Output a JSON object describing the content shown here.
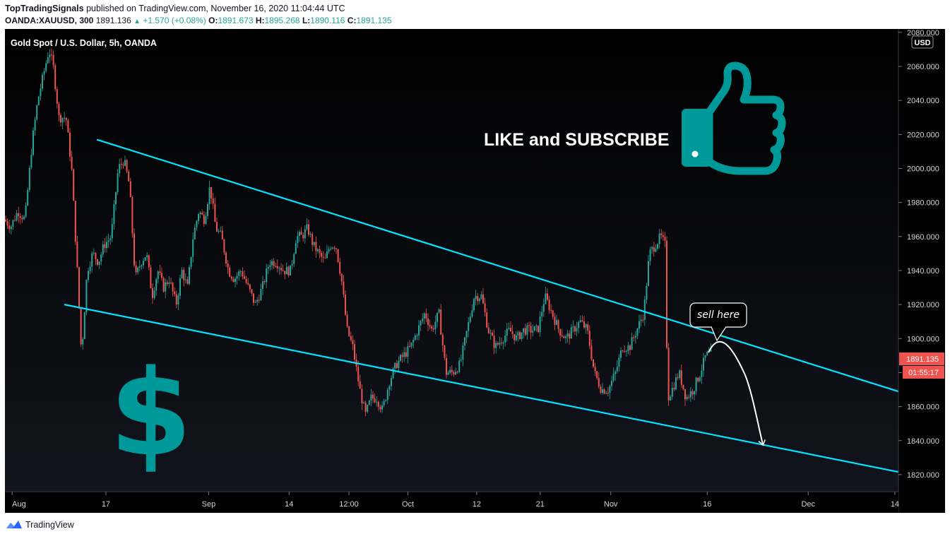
{
  "header": {
    "author": "TopTradingSignals",
    "published": "published on TradingView.com, November 16, 2020 11:04:44 UTC",
    "symbol": "OANDA:XAUUSD, 300",
    "last": "1891.136",
    "change": "+1.570 (+0.08%)",
    "o_label": "O:",
    "o_val": "1891.673",
    "h_label": "H:",
    "h_val": "1895.268",
    "l_label": "L:",
    "l_val": "1890.116",
    "c_label": "C:",
    "c_val": "1891.135"
  },
  "chart_data": {
    "type": "candlestick",
    "title": "Gold Spot / U.S. Dollar, 5h, OANDA",
    "currency": "USD",
    "y_ticks": [
      2080,
      2060,
      2040,
      2020,
      2000,
      1980,
      1960,
      1940,
      1920,
      1900,
      1880,
      1860,
      1840,
      1820
    ],
    "y_tick_labels": [
      "2080.000",
      "2060.000",
      "2040.000",
      "2020.000",
      "2000.000",
      "1980.000",
      "1960.000",
      "1940.000",
      "1920.000",
      "1900.000",
      "1880.000",
      "1860.000",
      "1840.000",
      "1820.000"
    ],
    "ylim": [
      1810,
      2082
    ],
    "x_ticks": [
      "Aug",
      "17",
      "Sep",
      "14",
      "12:00",
      "Oct",
      "12",
      "21",
      "Nov",
      "16",
      "Dec",
      "14"
    ],
    "last_price_label": "1891.135",
    "countdown_label": "01:55:17",
    "price_path": [
      [
        0,
        1970
      ],
      [
        10,
        1966
      ],
      [
        20,
        1975
      ],
      [
        30,
        1970
      ],
      [
        40,
        2015
      ],
      [
        48,
        2040
      ],
      [
        56,
        2055
      ],
      [
        64,
        2070
      ],
      [
        70,
        2060
      ],
      [
        78,
        2030
      ],
      [
        88,
        2030
      ],
      [
        96,
        2000
      ],
      [
        104,
        1940
      ],
      [
        110,
        1890
      ],
      [
        118,
        1940
      ],
      [
        126,
        1950
      ],
      [
        134,
        1945
      ],
      [
        142,
        1955
      ],
      [
        152,
        1960
      ],
      [
        162,
        2000
      ],
      [
        170,
        2005
      ],
      [
        178,
        1990
      ],
      [
        186,
        1935
      ],
      [
        194,
        1945
      ],
      [
        202,
        1950
      ],
      [
        210,
        1925
      ],
      [
        218,
        1940
      ],
      [
        226,
        1930
      ],
      [
        234,
        1935
      ],
      [
        244,
        1920
      ],
      [
        252,
        1940
      ],
      [
        260,
        1930
      ],
      [
        268,
        1960
      ],
      [
        276,
        1975
      ],
      [
        284,
        1970
      ],
      [
        292,
        1990
      ],
      [
        300,
        1965
      ],
      [
        308,
        1960
      ],
      [
        318,
        1940
      ],
      [
        326,
        1935
      ],
      [
        336,
        1940
      ],
      [
        346,
        1930
      ],
      [
        356,
        1920
      ],
      [
        366,
        1930
      ],
      [
        376,
        1945
      ],
      [
        386,
        1945
      ],
      [
        396,
        1940
      ],
      [
        406,
        1940
      ],
      [
        414,
        1960
      ],
      [
        422,
        1960
      ],
      [
        430,
        1965
      ],
      [
        438,
        1955
      ],
      [
        446,
        1950
      ],
      [
        454,
        1945
      ],
      [
        462,
        1955
      ],
      [
        470,
        1955
      ],
      [
        478,
        1935
      ],
      [
        486,
        1905
      ],
      [
        494,
        1895
      ],
      [
        504,
        1870
      ],
      [
        512,
        1855
      ],
      [
        520,
        1865
      ],
      [
        528,
        1865
      ],
      [
        536,
        1858
      ],
      [
        546,
        1875
      ],
      [
        556,
        1885
      ],
      [
        566,
        1890
      ],
      [
        576,
        1895
      ],
      [
        586,
        1905
      ],
      [
        596,
        1915
      ],
      [
        606,
        1905
      ],
      [
        616,
        1915
      ],
      [
        626,
        1880
      ],
      [
        636,
        1880
      ],
      [
        646,
        1885
      ],
      [
        656,
        1905
      ],
      [
        666,
        1925
      ],
      [
        676,
        1925
      ],
      [
        686,
        1905
      ],
      [
        696,
        1895
      ],
      [
        706,
        1900
      ],
      [
        716,
        1905
      ],
      [
        726,
        1900
      ],
      [
        736,
        1905
      ],
      [
        746,
        1905
      ],
      [
        756,
        1905
      ],
      [
        766,
        1925
      ],
      [
        776,
        1915
      ],
      [
        786,
        1905
      ],
      [
        796,
        1900
      ],
      [
        806,
        1905
      ],
      [
        816,
        1910
      ],
      [
        826,
        1905
      ],
      [
        836,
        1880
      ],
      [
        846,
        1870
      ],
      [
        856,
        1870
      ],
      [
        866,
        1880
      ],
      [
        876,
        1895
      ],
      [
        886,
        1895
      ],
      [
        896,
        1905
      ],
      [
        906,
        1915
      ],
      [
        914,
        1950
      ],
      [
        922,
        1955
      ],
      [
        930,
        1960
      ],
      [
        936,
        1955
      ],
      [
        940,
        1865
      ],
      [
        946,
        1870
      ],
      [
        956,
        1880
      ],
      [
        966,
        1865
      ],
      [
        976,
        1870
      ],
      [
        986,
        1880
      ],
      [
        994,
        1890
      ],
      [
        1000,
        1891
      ]
    ],
    "upper_trendline": [
      [
        130,
        2017
      ],
      [
        1272,
        1868
      ]
    ],
    "lower_trendline": [
      [
        84,
        1920
      ],
      [
        1272,
        1821
      ]
    ],
    "annotations": {
      "sell_here": "sell here",
      "like_subscribe": "LIKE and SUBSCRIBE",
      "dollar_sign": "$"
    }
  },
  "colors": {
    "background": "#000000",
    "up": "#26a69a",
    "down": "#ef5350",
    "trendline": "#00e5ff",
    "accent": "#009999"
  },
  "footer": {
    "brand": "TradingView"
  }
}
